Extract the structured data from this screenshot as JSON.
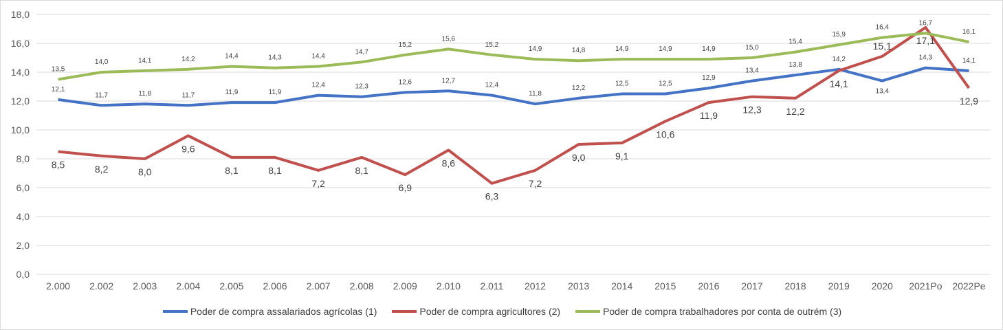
{
  "chart_data": {
    "type": "line",
    "title": "",
    "xlabel": "",
    "ylabel": "",
    "ylim": [
      0,
      18
    ],
    "yticks": [
      "0,0",
      "2,0",
      "4,0",
      "6,0",
      "8,0",
      "10,0",
      "12,0",
      "14,0",
      "16,0",
      "18,0"
    ],
    "grid": true,
    "legend_position": "bottom",
    "categories": [
      "2.000",
      "2.002",
      "2.003",
      "2.004",
      "2.005",
      "2.006",
      "2.007",
      "2.008",
      "2.009",
      "2.010",
      "2.011",
      "2012",
      "2013",
      "2014",
      "2015",
      "2016",
      "2017",
      "2018",
      "2019",
      "2020",
      "2021Po",
      "2022Pe"
    ],
    "series": [
      {
        "name": "Poder de compra assalariados agrícolas (1)",
        "color": "#4472c4",
        "values": [
          12.1,
          11.7,
          11.8,
          11.7,
          11.9,
          11.9,
          12.4,
          12.3,
          12.6,
          12.7,
          12.4,
          11.8,
          12.2,
          12.5,
          12.5,
          12.9,
          13.4,
          13.8,
          14.2,
          13.4,
          14.3,
          14.1
        ]
      },
      {
        "name": "Poder de compra agricultores (2)",
        "color": "#c0504d",
        "values": [
          8.5,
          8.2,
          8.0,
          9.6,
          8.1,
          8.1,
          7.2,
          8.1,
          6.9,
          8.6,
          6.3,
          7.2,
          9.0,
          9.1,
          10.6,
          11.9,
          12.3,
          12.2,
          14.1,
          15.1,
          17.1,
          12.9
        ]
      },
      {
        "name": "Poder de compra trabalhadores por conta de outrém (3)",
        "color": "#9bbb59",
        "values": [
          13.5,
          14.0,
          14.1,
          14.2,
          14.4,
          14.3,
          14.4,
          14.7,
          15.2,
          15.6,
          15.2,
          14.9,
          14.8,
          14.9,
          14.9,
          14.9,
          15.0,
          15.4,
          15.9,
          16.4,
          16.7,
          16.1
        ]
      }
    ]
  }
}
